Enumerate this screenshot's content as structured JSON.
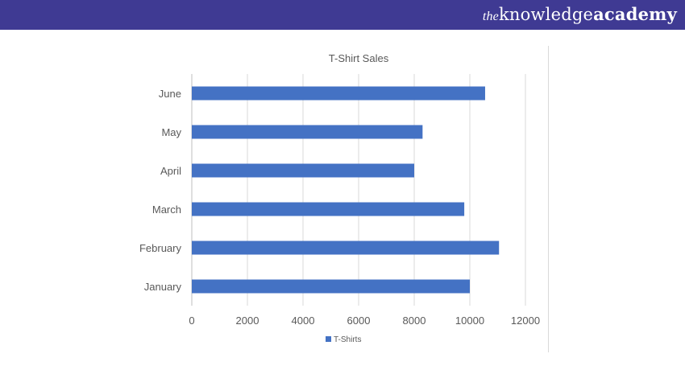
{
  "header": {
    "brand_prefix": "the",
    "brand_middle": "knowledge",
    "brand_suffix": "academy",
    "background": "#3f3a93"
  },
  "chart_data": {
    "type": "bar",
    "orientation": "horizontal",
    "title": "T-Shirt Sales",
    "categories": [
      "January",
      "February",
      "March",
      "April",
      "May",
      "June"
    ],
    "series": [
      {
        "name": "T-Shirts",
        "values": [
          10000,
          11050,
          9800,
          8000,
          8300,
          10550
        ],
        "color": "#4472c4"
      }
    ],
    "xlim": [
      0,
      12000
    ],
    "xticks": [
      0,
      2000,
      4000,
      6000,
      8000,
      10000,
      12000
    ],
    "grid": true,
    "legend": "bottom"
  }
}
